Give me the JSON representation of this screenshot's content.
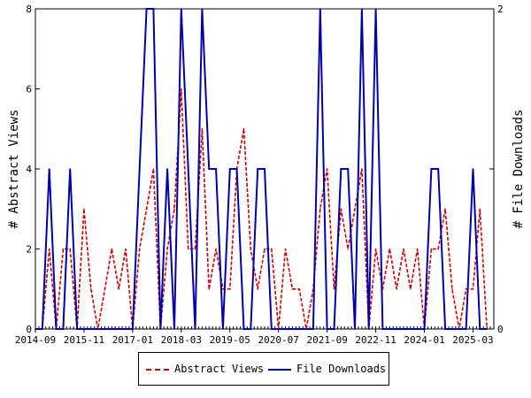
{
  "chart_data": {
    "type": "line",
    "ylabel_left": "# Abstract Views",
    "ylabel_right": "# File Downloads",
    "ylim_left": [
      0,
      8
    ],
    "ylim_right": [
      0,
      2
    ],
    "yticks_left": [
      "0",
      "2",
      "4",
      "6",
      "8"
    ],
    "yticks_right": [
      "0",
      "1",
      "2"
    ],
    "xlim": [
      "2014-09",
      "2025-09"
    ],
    "xtick_labels": [
      "2014-09",
      "2015-11",
      "2017-01",
      "2018-03",
      "2019-05",
      "2020-07",
      "2021-09",
      "2022-11",
      "2024-01",
      "2025-03"
    ],
    "legend_position": "bottom",
    "grid": false,
    "series": [
      {
        "name": "Abstract Views",
        "axis": "left",
        "color": "#cc0000",
        "style": "dashed",
        "x": [
          "2014-09",
          "2014-11",
          "2015-01",
          "2015-03",
          "2015-05",
          "2015-07",
          "2015-09",
          "2015-11",
          "2016-01",
          "2016-03",
          "2016-05",
          "2016-07",
          "2016-09",
          "2016-11",
          "2017-01",
          "2017-03",
          "2017-05",
          "2017-07",
          "2017-09",
          "2017-11",
          "2018-01",
          "2018-03",
          "2018-05",
          "2018-07",
          "2018-09",
          "2018-11",
          "2019-01",
          "2019-03",
          "2019-05",
          "2019-07",
          "2019-09",
          "2019-11",
          "2020-01",
          "2020-03",
          "2020-05",
          "2020-07",
          "2020-09",
          "2020-11",
          "2021-01",
          "2021-03",
          "2021-05",
          "2021-07",
          "2021-09",
          "2021-11",
          "2022-01",
          "2022-03",
          "2022-05",
          "2022-07",
          "2022-09",
          "2022-11",
          "2023-01",
          "2023-03",
          "2023-05",
          "2023-07",
          "2023-09",
          "2023-11",
          "2024-01",
          "2024-03",
          "2024-05",
          "2024-07",
          "2024-09",
          "2024-11",
          "2025-01",
          "2025-03",
          "2025-05",
          "2025-07"
        ],
        "values": [
          0,
          0,
          2,
          0,
          2,
          2,
          0,
          3,
          1,
          0,
          1,
          2,
          1,
          2,
          0,
          2,
          3,
          4,
          0,
          2,
          3,
          6,
          2,
          2,
          5,
          1,
          2,
          1,
          1,
          4,
          5,
          2,
          1,
          2,
          2,
          0,
          2,
          1,
          1,
          0,
          1,
          3,
          4,
          1,
          3,
          2,
          3,
          4,
          0,
          2,
          1,
          2,
          1,
          2,
          1,
          2,
          0,
          2,
          2,
          3,
          1,
          0,
          1,
          1,
          3,
          0
        ]
      },
      {
        "name": "File Downloads",
        "axis": "right",
        "color": "#0000aa",
        "style": "solid",
        "x": [
          "2014-09",
          "2014-11",
          "2015-01",
          "2015-03",
          "2015-05",
          "2015-07",
          "2015-09",
          "2015-11",
          "2016-01",
          "2016-03",
          "2016-05",
          "2016-07",
          "2016-09",
          "2016-11",
          "2017-01",
          "2017-03",
          "2017-05",
          "2017-07",
          "2017-09",
          "2017-11",
          "2018-01",
          "2018-03",
          "2018-05",
          "2018-07",
          "2018-09",
          "2018-11",
          "2019-01",
          "2019-03",
          "2019-05",
          "2019-07",
          "2019-09",
          "2019-11",
          "2020-01",
          "2020-03",
          "2020-05",
          "2020-07",
          "2020-09",
          "2020-11",
          "2021-01",
          "2021-03",
          "2021-05",
          "2021-07",
          "2021-09",
          "2021-11",
          "2022-01",
          "2022-03",
          "2022-05",
          "2022-07",
          "2022-09",
          "2022-11",
          "2023-01",
          "2023-03",
          "2023-05",
          "2023-07",
          "2023-09",
          "2023-11",
          "2024-01",
          "2024-03",
          "2024-05",
          "2024-07",
          "2024-09",
          "2024-11",
          "2025-01",
          "2025-03",
          "2025-05",
          "2025-07"
        ],
        "values": [
          0,
          0,
          1,
          0,
          0,
          1,
          0,
          0,
          0,
          0,
          0,
          0,
          0,
          0,
          0,
          1,
          2,
          2,
          0,
          1,
          0,
          2,
          1,
          0,
          2,
          1,
          1,
          0,
          1,
          1,
          0,
          0,
          1,
          1,
          0,
          0,
          0,
          0,
          0,
          0,
          0,
          2,
          0,
          0,
          1,
          1,
          0,
          2,
          0,
          2,
          0,
          0,
          0,
          0,
          0,
          0,
          0,
          1,
          1,
          0,
          0,
          0,
          0,
          1,
          0,
          0
        ]
      }
    ]
  }
}
